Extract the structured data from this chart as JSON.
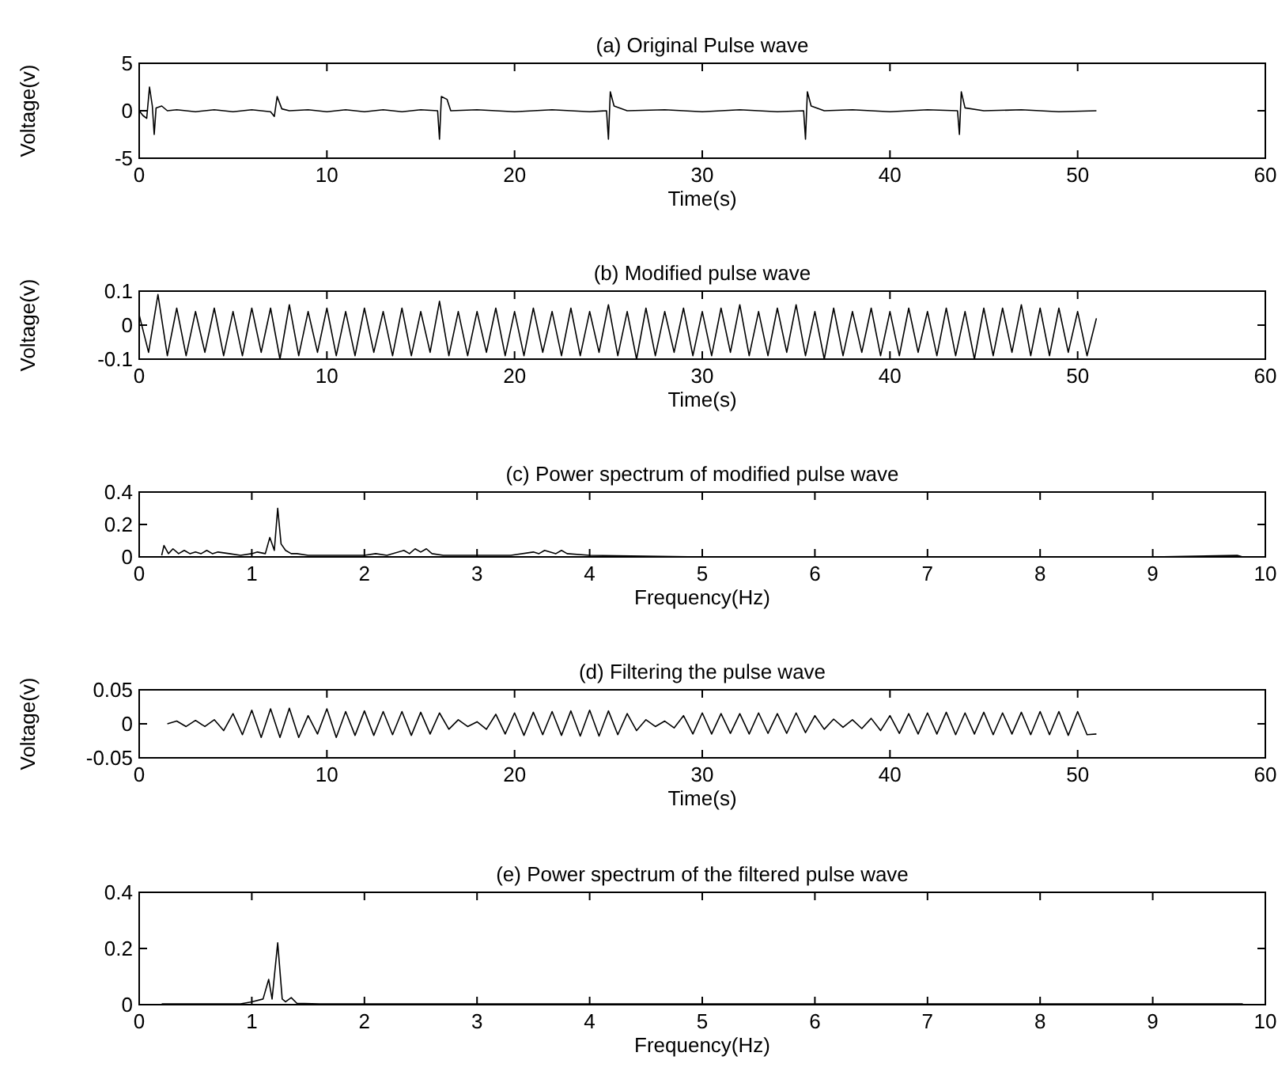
{
  "chart_data": [
    {
      "type": "line",
      "title": "(a) Original Pulse wave",
      "xlabel": "Time(s)",
      "ylabel": "Voltage(v)",
      "xlim": [
        0,
        60
      ],
      "ylim": [
        -5,
        5
      ],
      "xticks": [
        0,
        10,
        20,
        30,
        40,
        50,
        60
      ],
      "yticks": [
        -5,
        0,
        5
      ],
      "x": [
        0,
        0.2,
        0.4,
        0.55,
        0.7,
        0.8,
        0.9,
        1.2,
        1.5,
        2,
        3,
        4,
        5,
        6,
        7,
        7.2,
        7.35,
        7.6,
        8,
        9,
        10,
        11,
        12,
        13,
        14,
        15,
        15.9,
        16,
        16.1,
        16.4,
        16.6,
        18,
        20,
        22,
        24,
        24.9,
        25,
        25.1,
        25.3,
        26,
        28,
        30,
        32,
        34,
        35.4,
        35.5,
        35.6,
        35.8,
        36.5,
        38,
        40,
        42,
        43.6,
        43.7,
        43.8,
        44,
        45,
        47,
        49,
        51
      ],
      "series": [
        {
          "color": "#000000",
          "values": [
            0,
            -0.5,
            -0.8,
            2.5,
            0.5,
            -2.5,
            0.3,
            0.5,
            0,
            0.1,
            -0.1,
            0.1,
            -0.1,
            0.1,
            -0.1,
            -0.6,
            1.5,
            0.2,
            0,
            0.1,
            -0.1,
            0.1,
            -0.1,
            0.1,
            -0.1,
            0.1,
            0,
            -3,
            1.5,
            1.2,
            0,
            0.1,
            -0.1,
            0.1,
            -0.1,
            0,
            -3,
            2,
            0.5,
            0,
            0.1,
            -0.1,
            0.1,
            -0.1,
            0,
            -3,
            2,
            0.5,
            0,
            0.1,
            -0.1,
            0.1,
            0,
            -2.5,
            2,
            0.3,
            0,
            0.1,
            -0.1,
            0
          ]
        }
      ]
    },
    {
      "type": "line",
      "title": "(b) Modified pulse wave",
      "xlabel": "Time(s)",
      "ylabel": "Voltage(v)",
      "xlim": [
        0,
        60
      ],
      "ylim": [
        -0.1,
        0.1
      ],
      "xticks": [
        0,
        10,
        20,
        30,
        40,
        50,
        60
      ],
      "yticks": [
        -0.1,
        0,
        0.1
      ],
      "x": [
        0,
        0.5,
        1,
        1.5,
        2,
        2.5,
        3,
        3.5,
        4,
        4.5,
        5,
        5.5,
        6,
        6.5,
        7,
        7.5,
        8,
        8.5,
        9,
        9.5,
        10,
        10.5,
        11,
        11.5,
        12,
        12.5,
        13,
        13.5,
        14,
        14.5,
        15,
        15.5,
        16,
        16.5,
        17,
        17.5,
        18,
        18.5,
        19,
        19.5,
        20,
        20.5,
        21,
        21.5,
        22,
        22.5,
        23,
        23.5,
        24,
        24.5,
        25,
        25.5,
        26,
        26.5,
        27,
        27.5,
        28,
        28.5,
        29,
        29.5,
        30,
        30.5,
        31,
        31.5,
        32,
        32.5,
        33,
        33.5,
        34,
        34.5,
        35,
        35.5,
        36,
        36.5,
        37,
        37.5,
        38,
        38.5,
        39,
        39.5,
        40,
        40.5,
        41,
        41.5,
        42,
        42.5,
        43,
        43.5,
        44,
        44.5,
        45,
        45.5,
        46,
        46.5,
        47,
        47.5,
        48,
        48.5,
        49,
        49.5,
        50,
        50.5,
        51
      ],
      "series": [
        {
          "color": "#000000",
          "values": [
            0.03,
            -0.08,
            0.09,
            -0.09,
            0.05,
            -0.09,
            0.04,
            -0.08,
            0.05,
            -0.09,
            0.04,
            -0.09,
            0.05,
            -0.08,
            0.05,
            -0.1,
            0.06,
            -0.09,
            0.04,
            -0.08,
            0.05,
            -0.09,
            0.04,
            -0.09,
            0.05,
            -0.08,
            0.04,
            -0.09,
            0.05,
            -0.09,
            0.04,
            -0.08,
            0.07,
            -0.09,
            0.04,
            -0.09,
            0.04,
            -0.08,
            0.05,
            -0.09,
            0.04,
            -0.09,
            0.05,
            -0.08,
            0.04,
            -0.09,
            0.05,
            -0.09,
            0.04,
            -0.08,
            0.06,
            -0.09,
            0.04,
            -0.1,
            0.05,
            -0.09,
            0.04,
            -0.08,
            0.05,
            -0.09,
            0.04,
            -0.09,
            0.05,
            -0.08,
            0.06,
            -0.09,
            0.04,
            -0.09,
            0.05,
            -0.08,
            0.06,
            -0.09,
            0.04,
            -0.1,
            0.05,
            -0.09,
            0.04,
            -0.08,
            0.05,
            -0.09,
            0.04,
            -0.09,
            0.05,
            -0.08,
            0.04,
            -0.09,
            0.05,
            -0.09,
            0.04,
            -0.1,
            0.05,
            -0.09,
            0.05,
            -0.08,
            0.06,
            -0.09,
            0.05,
            -0.09,
            0.05,
            -0.08,
            0.04,
            -0.09,
            0.02
          ]
        }
      ]
    },
    {
      "type": "line",
      "title": "(c) Power spectrum of modified pulse wave",
      "xlabel": "Frequency(Hz)",
      "xlim": [
        0,
        10
      ],
      "ylim": [
        0,
        0.4
      ],
      "xticks": [
        0,
        1,
        2,
        3,
        4,
        5,
        6,
        7,
        8,
        9,
        10
      ],
      "yticks": [
        0,
        0.2,
        0.4
      ],
      "x": [
        0.2,
        0.22,
        0.26,
        0.3,
        0.35,
        0.4,
        0.45,
        0.5,
        0.55,
        0.6,
        0.65,
        0.7,
        0.8,
        0.9,
        1,
        1.05,
        1.12,
        1.16,
        1.2,
        1.23,
        1.26,
        1.3,
        1.35,
        1.4,
        1.5,
        1.7,
        2,
        2.1,
        2.2,
        2.35,
        2.4,
        2.45,
        2.5,
        2.55,
        2.6,
        2.7,
        3,
        3.3,
        3.5,
        3.55,
        3.6,
        3.7,
        3.75,
        3.8,
        4,
        5,
        6,
        7,
        8,
        9,
        9.75,
        9.8
      ],
      "series": [
        {
          "color": "#000000",
          "values": [
            0.01,
            0.07,
            0.02,
            0.05,
            0.02,
            0.04,
            0.02,
            0.03,
            0.02,
            0.04,
            0.02,
            0.03,
            0.02,
            0.01,
            0.02,
            0.03,
            0.02,
            0.12,
            0.04,
            0.3,
            0.08,
            0.04,
            0.02,
            0.02,
            0.01,
            0.01,
            0.01,
            0.02,
            0.01,
            0.04,
            0.02,
            0.05,
            0.03,
            0.05,
            0.02,
            0.01,
            0.01,
            0.01,
            0.03,
            0.02,
            0.04,
            0.02,
            0.04,
            0.02,
            0.01,
            0,
            0,
            0,
            0,
            0,
            0.01,
            0
          ]
        }
      ]
    },
    {
      "type": "line",
      "title": "(d) Filtering the pulse wave",
      "xlabel": "Time(s)",
      "ylabel": "Voltage(v)",
      "xlim": [
        0,
        60
      ],
      "ylim": [
        -0.05,
        0.05
      ],
      "xticks": [
        0,
        10,
        20,
        30,
        40,
        50,
        60
      ],
      "yticks": [
        -0.05,
        0,
        0.05
      ],
      "x": [
        1.5,
        2,
        2.5,
        3,
        3.5,
        4,
        4.5,
        5,
        5.5,
        6,
        6.5,
        7,
        7.5,
        8,
        8.5,
        9,
        9.5,
        10,
        10.5,
        11,
        11.5,
        12,
        12.5,
        13,
        13.5,
        14,
        14.5,
        15,
        15.5,
        16,
        16.5,
        17,
        17.5,
        18,
        18.5,
        19,
        19.5,
        20,
        20.5,
        21,
        21.5,
        22,
        22.5,
        23,
        23.5,
        24,
        24.5,
        25,
        25.5,
        26,
        26.5,
        27,
        27.5,
        28,
        28.5,
        29,
        29.5,
        30,
        30.5,
        31,
        31.5,
        32,
        32.5,
        33,
        33.5,
        34,
        34.5,
        35,
        35.5,
        36,
        36.5,
        37,
        37.5,
        38,
        38.5,
        39,
        39.5,
        40,
        40.5,
        41,
        41.5,
        42,
        42.5,
        43,
        43.5,
        44,
        44.5,
        45,
        45.5,
        46,
        46.5,
        47,
        47.5,
        48,
        48.5,
        49,
        49.5,
        50,
        50.5,
        51
      ],
      "series": [
        {
          "color": "#000000",
          "values": [
            0,
            0.004,
            -0.004,
            0.005,
            -0.004,
            0.006,
            -0.01,
            0.015,
            -0.016,
            0.02,
            -0.02,
            0.022,
            -0.02,
            0.023,
            -0.02,
            0.012,
            -0.015,
            0.022,
            -0.02,
            0.018,
            -0.017,
            0.019,
            -0.017,
            0.018,
            -0.016,
            0.018,
            -0.017,
            0.017,
            -0.015,
            0.016,
            -0.008,
            0.006,
            -0.004,
            0.003,
            -0.008,
            0.014,
            -0.015,
            0.016,
            -0.017,
            0.017,
            -0.016,
            0.018,
            -0.017,
            0.019,
            -0.018,
            0.02,
            -0.018,
            0.019,
            -0.016,
            0.015,
            -0.01,
            0.006,
            -0.004,
            0.004,
            -0.006,
            0.012,
            -0.015,
            0.016,
            -0.015,
            0.015,
            -0.014,
            0.015,
            -0.015,
            0.016,
            -0.014,
            0.015,
            -0.014,
            0.016,
            -0.013,
            0.012,
            -0.008,
            0.007,
            -0.005,
            0.006,
            -0.007,
            0.008,
            -0.01,
            0.012,
            -0.014,
            0.015,
            -0.015,
            0.016,
            -0.015,
            0.017,
            -0.016,
            0.016,
            -0.015,
            0.017,
            -0.016,
            0.016,
            -0.015,
            0.017,
            -0.016,
            0.018,
            -0.016,
            0.018,
            -0.017,
            0.018,
            -0.016,
            -0.015
          ]
        }
      ]
    },
    {
      "type": "line",
      "title": "(e) Power spectrum of the filtered pulse wave",
      "xlabel": "Frequency(Hz)",
      "xlim": [
        0,
        10
      ],
      "ylim": [
        0,
        0.4
      ],
      "xticks": [
        0,
        1,
        2,
        3,
        4,
        5,
        6,
        7,
        8,
        9,
        10
      ],
      "yticks": [
        0,
        0.2,
        0.4
      ],
      "x": [
        0.2,
        0.9,
        1,
        1.1,
        1.15,
        1.18,
        1.23,
        1.27,
        1.3,
        1.35,
        1.4,
        1.6,
        3,
        5,
        7,
        9,
        9.8
      ],
      "series": [
        {
          "color": "#000000",
          "values": [
            0.003,
            0.003,
            0.01,
            0.02,
            0.09,
            0.02,
            0.22,
            0.02,
            0.01,
            0.025,
            0.005,
            0.003,
            0.003,
            0.003,
            0.003,
            0.003,
            0.003
          ]
        }
      ]
    }
  ]
}
